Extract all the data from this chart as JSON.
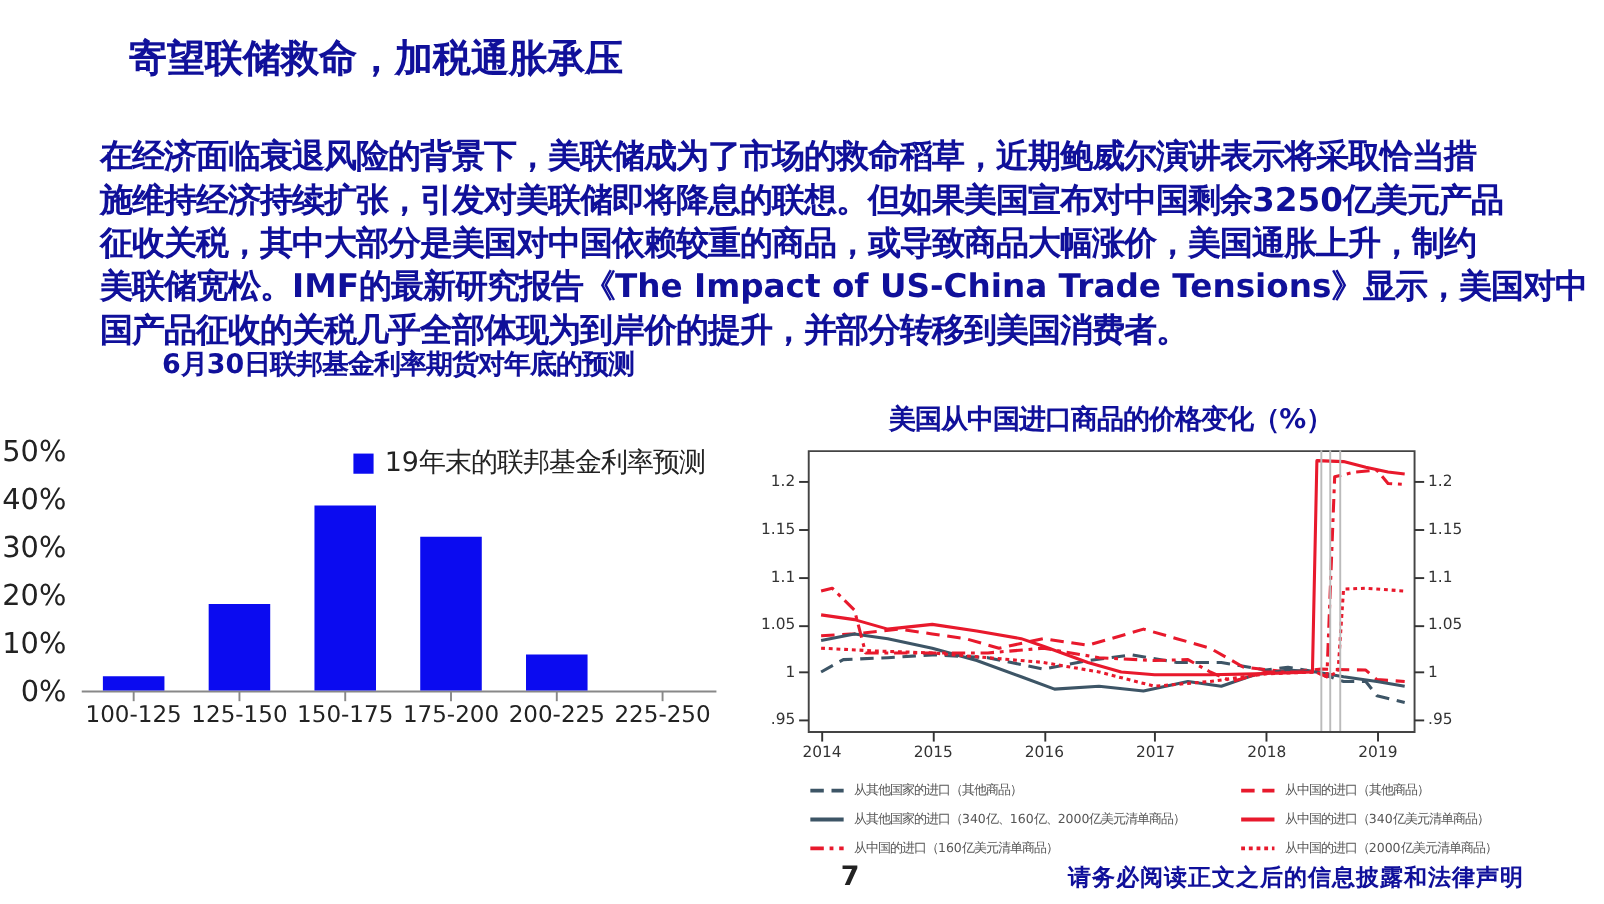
{
  "chart_data": [
    {
      "type": "bar",
      "title": "6月30日联邦基金利率期货对年底的预测",
      "categories": [
        "100-125",
        "125-150",
        "150-175",
        "175-200",
        "200-225",
        "225-250"
      ],
      "series": [
        {
          "name": "19年末的联邦基金利率预测",
          "color": "#0b0bf0",
          "values": [
            3,
            18,
            38.5,
            32,
            7.5,
            0
          ]
        }
      ],
      "ylim": [
        0,
        50
      ],
      "yticks": [
        {
          "value": 0,
          "label": "0%"
        },
        {
          "value": 10,
          "label": "10%"
        },
        {
          "value": 20,
          "label": "20%"
        },
        {
          "value": 30,
          "label": "30%"
        },
        {
          "value": 40,
          "label": "40%"
        },
        {
          "value": 50,
          "label": "50%"
        }
      ],
      "legend": "top right",
      "annotations": [
        "寄望联储救命，加税通胀承压",
        "在经济面临衰退风险的背景下，美联储成为了市场的救命稻草，近期鲍威尔演讲表示将采取恰当措",
        "施维持经济持续扩张，引发对美联储即将降息的联想。但如果美国宣布对中国剩余3250亿美元产品",
        "征收关税，其中大部分是美国对中国依赖较重的商品，或导致商品大幅涨价，美国通胀上升，制约",
        "美联储宽松。IMF的最新研究报告《The Impact of US-China Trade Tensions》显示，美国对中",
        "国产品征收的关税几乎全部体现为到岸价的提升，并部分转移到美国消费者。"
      ]
    },
    {
      "type": "line",
      "title": "美国从中国进口商品的价格变化（%）",
      "series": [
        {
          "name": "从其他国家的进口（其他商品）",
          "color": "#3d5566",
          "line_style": "dashed",
          "x": [
            2014,
            2014.2,
            2014.6,
            2015,
            2015.5,
            2016.0,
            2016.4,
            2016.8,
            2017.2,
            2017.6,
            2018.0,
            2018.2,
            2018.45,
            2018.7,
            2018.9,
            2019.0,
            2019.25
          ],
          "values": [
            1.0,
            1.013,
            1.015,
            1.018,
            1.015,
            1.003,
            1.012,
            1.018,
            1.01,
            1.01,
            1.002,
            1.005,
            1.0,
            0.99,
            0.99,
            0.975,
            0.968
          ]
        },
        {
          "name": "从中国的进口（其他商品）",
          "color": "#e8192c",
          "line_style": "dashed",
          "x": [
            2014,
            2014.3,
            2014.7,
            2015,
            2015.3,
            2015.6,
            2016.0,
            2016.4,
            2016.9,
            2017.2,
            2017.5,
            2017.8,
            2018.2,
            2018.5,
            2018.9,
            2019.0,
            2019.25
          ],
          "values": [
            1.038,
            1.04,
            1.045,
            1.04,
            1.035,
            1.025,
            1.035,
            1.028,
            1.045,
            1.035,
            1.025,
            1.005,
            1.0,
            1.003,
            1.002,
            0.992,
            0.99
          ]
        },
        {
          "name": "从其他国家的进口（340亿、160亿、2000亿美元清单商品）",
          "color": "#3d5566",
          "line_style": "solid",
          "x": [
            2014,
            2014.3,
            2014.6,
            2015,
            2015.4,
            2015.8,
            2016.1,
            2016.5,
            2016.9,
            2017.3,
            2017.6,
            2017.9,
            2018.2,
            2018.45,
            2018.7,
            2019.0,
            2019.25
          ],
          "values": [
            1.033,
            1.04,
            1.035,
            1.025,
            1.012,
            0.995,
            0.982,
            0.985,
            0.98,
            0.99,
            0.985,
            0.997,
            1.002,
            1.0,
            0.995,
            0.99,
            0.985
          ]
        },
        {
          "name": "从中国的进口（340亿美元清单商品）",
          "color": "#e8192c",
          "line_style": "solid",
          "x": [
            2014,
            2014.3,
            2014.6,
            2015,
            2015.4,
            2015.8,
            2016.0,
            2016.4,
            2016.7,
            2017.0,
            2017.5,
            2017.9,
            2018.42,
            2018.46,
            2018.7,
            2018.9,
            2019.1,
            2019.25
          ],
          "values": [
            1.06,
            1.055,
            1.045,
            1.05,
            1.043,
            1.035,
            1.027,
            1.01,
            1.0,
            0.997,
            0.997,
            0.998,
            1.0,
            1.222,
            1.221,
            1.215,
            1.21,
            1.208
          ]
        },
        {
          "name": "从中国的进口（160亿美元清单商品）",
          "color": "#e8192c",
          "line_style": "dashdot",
          "x": [
            2014,
            2014.1,
            2014.3,
            2014.4,
            2015,
            2015.5,
            2016.0,
            2016.5,
            2017.0,
            2017.3,
            2017.5,
            2017.7,
            2018.0,
            2018.45,
            2018.55,
            2018.62,
            2018.8,
            2019.0,
            2019.1,
            2019.25
          ],
          "values": [
            1.085,
            1.088,
            1.065,
            1.02,
            1.02,
            1.02,
            1.025,
            1.015,
            1.012,
            1.013,
            1.0,
            0.99,
            1.0,
            1.0,
            0.995,
            1.205,
            1.21,
            1.212,
            1.198,
            1.197
          ]
        },
        {
          "name": "从中国的进口（2000亿美元清单商品）",
          "color": "#e8192c",
          "line_style": "dotted",
          "x": [
            2014,
            2014.5,
            2015,
            2015.5,
            2016.0,
            2016.5,
            2017.0,
            2017.5,
            2018.0,
            2018.45,
            2018.55,
            2018.65,
            2018.7,
            2018.9,
            2019.25
          ],
          "values": [
            1.025,
            1.022,
            1.02,
            1.015,
            1.01,
            1.0,
            0.985,
            0.99,
            0.998,
            1.0,
            0.995,
            1.0,
            1.087,
            1.088,
            1.085
          ]
        }
      ],
      "xlim": [
        2013.88,
        2019.33
      ],
      "xticks": [
        2014,
        2015,
        2016,
        2017,
        2018,
        2019
      ],
      "ylim": [
        0.938,
        1.233
      ],
      "yticks": [
        {
          "value": 0.95,
          "label": ".95"
        },
        {
          "value": 1,
          "label": "1"
        },
        1.05,
        {
          "value": 1.1,
          "label": "1.1"
        },
        1.15,
        {
          "value": 1.2,
          "label": "1.2"
        }
      ],
      "y2lim": [
        0.938,
        1.233
      ],
      "y2ticks": [
        {
          "value": 0.95,
          "label": ".95"
        },
        {
          "value": 1,
          "label": "1"
        },
        1.05,
        {
          "value": 1.1,
          "label": "1.1"
        },
        1.15,
        {
          "value": 1.2,
          "label": "1.2"
        }
      ],
      "ref_lines": [
        {
          "axis": "x",
          "value": 2018.5,
          "color": "#bbbbbb"
        },
        {
          "axis": "x",
          "value": 2018.58,
          "color": "#bbbbbb"
        },
        {
          "axis": "x",
          "value": 2018.67,
          "color": "#bbbbbb"
        }
      ],
      "legend": "bottom",
      "annotations": [
        "7",
        "请务必阅读正文之后的信息披露和法律声明"
      ]
    }
  ]
}
